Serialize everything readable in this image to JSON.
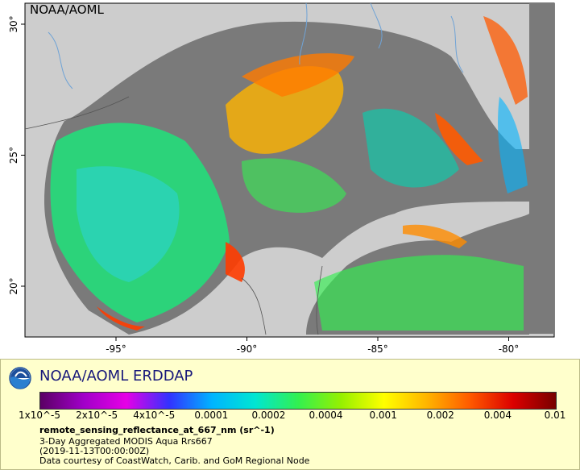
{
  "map": {
    "watermark": "NOAA/AOML",
    "lon_ticks": [
      {
        "label": "-95°",
        "value": -95
      },
      {
        "label": "-90°",
        "value": -90
      },
      {
        "label": "-85°",
        "value": -85
      },
      {
        "label": "-80°",
        "value": -80
      }
    ],
    "lat_ticks": [
      {
        "label": "30°",
        "value": 30
      },
      {
        "label": "25°",
        "value": 25
      },
      {
        "label": "20°",
        "value": 20
      }
    ],
    "colors": {
      "ocean_nodata": "#7a7a7a",
      "land": "#cdcdcd",
      "rivers": "#6fa3d6",
      "borders": "#555555"
    }
  },
  "legend": {
    "title": "NOAA/AOML ERDDAP",
    "logo": "noaa-logo-icon",
    "colorbar_ticks": [
      "1x10^-5",
      "2x10^-5",
      "4x10^-5",
      "0.0001",
      "0.0002",
      "0.0004",
      "0.001",
      "0.002",
      "0.004",
      "0.01"
    ],
    "colorbar_colors": [
      "#5a0064",
      "#a000c8",
      "#e600e6",
      "#3232ff",
      "#00b4ff",
      "#00e6d2",
      "#32f050",
      "#96f000",
      "#ffff00",
      "#ffb400",
      "#ff5a00",
      "#dc0000",
      "#780000"
    ],
    "variable": "remote_sensing_reflectance_at_667_nm (sr^-1)",
    "description": "3-Day Aggregated MODIS Aqua Rrs667",
    "time": "(2019-11-13T00:00:00Z)",
    "credit": "Data courtesy of CoastWatch, Carib. and GoM Regional Node"
  }
}
